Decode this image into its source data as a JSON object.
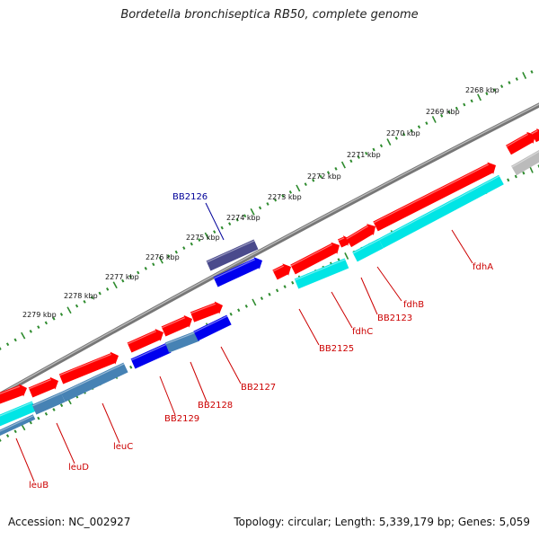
{
  "title": "Bordetella bronchiseptica RB50, complete genome",
  "footer": {
    "accession": "Accession: NC_002927",
    "topology": "Topology: circular; Length: 5,339,179 bp; Genes: 5,059"
  },
  "colors": {
    "backbone": "#8c8c8c",
    "tick": "#2e8b2e",
    "cds_forward": "#ff0000",
    "rna_cyan": "#00e5e5",
    "steelblue": "#4682b4",
    "blue": "#0000ee",
    "navy": "#4a4a8c",
    "gray": "#bbbbbb",
    "label_red": "#cc0000",
    "label_blue": "#000099"
  },
  "ruler": {
    "unit": "kbp",
    "labels": [
      "2268 kbp",
      "2269 kbp",
      "2270 kbp",
      "2271 kbp",
      "2272 kbp",
      "2273 kbp",
      "2274 kbp",
      "2275 kbp",
      "2276 kbp",
      "2277 kbp",
      "2278 kbp",
      "2279 kbp"
    ]
  },
  "genes": [
    {
      "name": "BB2126"
    },
    {
      "name": "fdhA"
    },
    {
      "name": "fdhB"
    },
    {
      "name": "BB2123"
    },
    {
      "name": "fdhC"
    },
    {
      "name": "BB2125"
    },
    {
      "name": "BB2127"
    },
    {
      "name": "BB2128"
    },
    {
      "name": "BB2129"
    },
    {
      "name": "leuC"
    },
    {
      "name": "leuD"
    },
    {
      "name": "leuB"
    }
  ]
}
